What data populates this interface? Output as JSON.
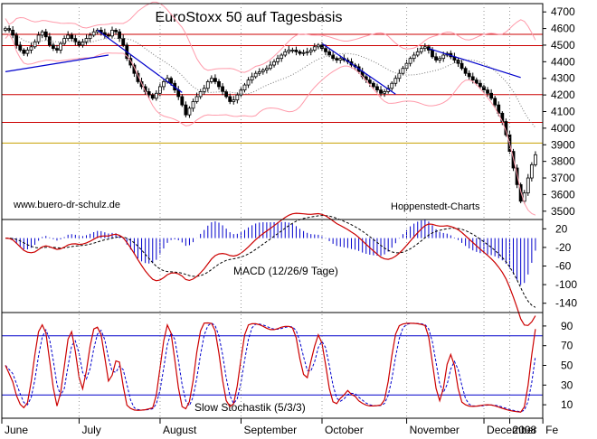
{
  "chart_data": [
    {
      "type": "candlestick",
      "title": "EuroStoxx 50 auf Tagesbasis",
      "watermark_left": "www.buero-dr-schulz.de",
      "watermark_right": "Hoppenstedt-Charts",
      "ylim": [
        3450,
        4750
      ],
      "y_ticks": [
        "4700",
        "4600",
        "4500",
        "4400",
        "4300",
        "4200",
        "4100",
        "4000",
        "3900",
        "3800",
        "3700",
        "3600",
        "3500"
      ],
      "y_tick_values": [
        4700,
        4600,
        4500,
        4400,
        4300,
        4200,
        4100,
        4000,
        3900,
        3800,
        3700,
        3600,
        3500
      ],
      "x_ticks": [
        "June",
        "July",
        "August",
        "September",
        "October",
        "November",
        "December",
        "2008",
        "Fe"
      ],
      "close": [
        4600,
        4590,
        4560,
        4500,
        4470,
        4450,
        4470,
        4490,
        4520,
        4560,
        4580,
        4550,
        4500,
        4480,
        4470,
        4510,
        4540,
        4560,
        4540,
        4520,
        4500,
        4520,
        4540,
        4560,
        4580,
        4590,
        4575,
        4560,
        4555,
        4590,
        4580,
        4540,
        4500,
        4420,
        4380,
        4330,
        4280,
        4250,
        4220,
        4200,
        4180,
        4210,
        4250,
        4280,
        4300,
        4270,
        4230,
        4190,
        4140,
        4080,
        4120,
        4160,
        4190,
        4220,
        4240,
        4280,
        4300,
        4280,
        4250,
        4220,
        4190,
        4160,
        4170,
        4200,
        4230,
        4260,
        4290,
        4310,
        4330,
        4340,
        4350,
        4360,
        4380,
        4400,
        4420,
        4440,
        4460,
        4470,
        4470,
        4460,
        4450,
        4455,
        4460,
        4470,
        4490,
        4500,
        4480,
        4460,
        4440,
        4420,
        4410,
        4420,
        4410,
        4400,
        4380,
        4370,
        4340,
        4310,
        4290,
        4270,
        4250,
        4230,
        4210,
        4220,
        4240,
        4270,
        4300,
        4330,
        4360,
        4390,
        4420,
        4440,
        4460,
        4480,
        4490,
        4470,
        4430,
        4410,
        4420,
        4440,
        4450,
        4430,
        4410,
        4390,
        4360,
        4330,
        4310,
        4290,
        4270,
        4250,
        4230,
        4210,
        4180,
        4140,
        4090,
        4040,
        3960,
        3860,
        3760,
        3660,
        3560,
        3610,
        3700,
        3780,
        3840
      ],
      "horizontal_lines": [
        {
          "value": 4565,
          "color": "#cc0000"
        },
        {
          "value": 4497,
          "color": "#cc0000"
        },
        {
          "value": 4202,
          "color": "#cc0000"
        },
        {
          "value": 4035,
          "color": "#cc0000"
        },
        {
          "value": 3910,
          "color": "#c8a000"
        }
      ],
      "trendlines": [
        {
          "from": [
            0,
            4340
          ],
          "to": [
            28,
            4440
          ],
          "color": "#0000cc"
        },
        {
          "from": [
            25,
            4590
          ],
          "to": [
            48,
            4215
          ],
          "color": "#0000cc"
        },
        {
          "from": [
            86,
            4510
          ],
          "to": [
            106,
            4205
          ],
          "color": "#0000cc"
        },
        {
          "from": [
            115,
            4480
          ],
          "to": [
            140,
            4305
          ],
          "color": "#0000cc"
        }
      ]
    },
    {
      "type": "line",
      "title": "MACD (12/26/9 Tage)",
      "ylim": [
        -160,
        40
      ],
      "y_ticks": [
        "20",
        "-20",
        "-60",
        "-100",
        "-140"
      ],
      "y_tick_values": [
        20,
        -20,
        -60,
        -100,
        -140
      ],
      "series": [
        {
          "color": "#cc0000"
        },
        {
          "color": "#000000"
        },
        {
          "color": "#0000cc"
        }
      ]
    },
    {
      "type": "line",
      "title": "Slow Stochastik (5/3/3)",
      "ylim": [
        0,
        100
      ],
      "y_ticks": [
        "90",
        "70",
        "50",
        "30",
        "10"
      ],
      "y_tick_values": [
        90,
        70,
        50,
        30,
        10
      ],
      "levels": [
        80,
        20
      ],
      "series": [
        {
          "color": "#cc0000"
        },
        {
          "color": "#0000cc"
        }
      ]
    }
  ],
  "colors": {
    "candle": "#000000",
    "bollinger": "#ff9aaa",
    "moving_average": "#777777",
    "trendline": "#0000cc",
    "macd": "#cc0000",
    "signal": "#000000",
    "histogram": "#0000cc",
    "stoch_k": "#cc0000",
    "stoch_d": "#0000cc",
    "level": "#0000cc",
    "grid": "#000000"
  }
}
